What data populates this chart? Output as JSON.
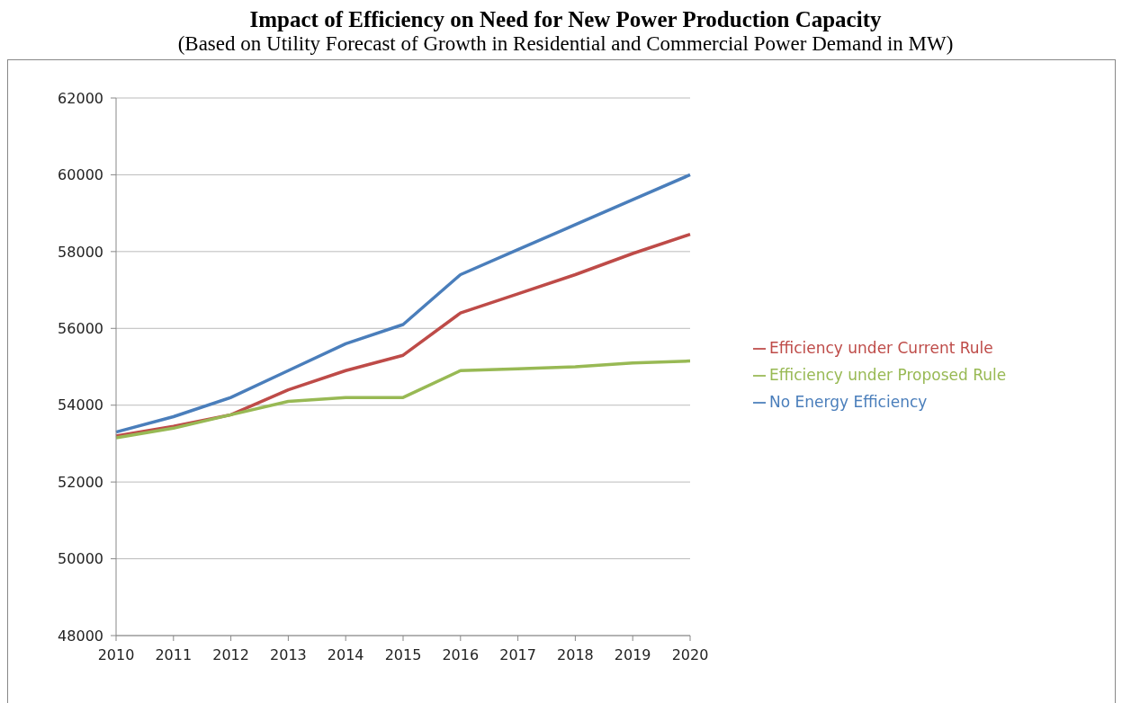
{
  "chart_data": {
    "type": "line",
    "title": "Impact of Efficiency on Need for New Power Production Capacity",
    "subtitle": "(Based on Utility Forecast of Growth in Residential and Commercial Power Demand in MW)",
    "categories": [
      "2010",
      "2011",
      "2012",
      "2013",
      "2014",
      "2015",
      "2016",
      "2017",
      "2018",
      "2019",
      "2020"
    ],
    "series": [
      {
        "name": "No Energy Efficiency",
        "color": "#4a7ebb",
        "values": [
          53300,
          53700,
          54200,
          54900,
          55600,
          56100,
          57400,
          58050,
          58700,
          59350,
          60000
        ]
      },
      {
        "name": "Efficiency under Current Rule",
        "color": "#be4b48",
        "values": [
          53200,
          53450,
          53750,
          54400,
          54900,
          55300,
          56400,
          56900,
          57400,
          57950,
          58450
        ]
      },
      {
        "name": "Efficiency under Proposed Rule",
        "color": "#98b954",
        "values": [
          53150,
          53400,
          53750,
          54100,
          54200,
          54200,
          54900,
          54950,
          55000,
          55100,
          55150
        ]
      }
    ],
    "ylim": [
      48000,
      62000
    ],
    "yticks": [
      48000,
      50000,
      52000,
      54000,
      56000,
      58000,
      60000,
      62000
    ],
    "grid": "y",
    "legend": "right",
    "marker": "none",
    "line_style": "solid"
  }
}
